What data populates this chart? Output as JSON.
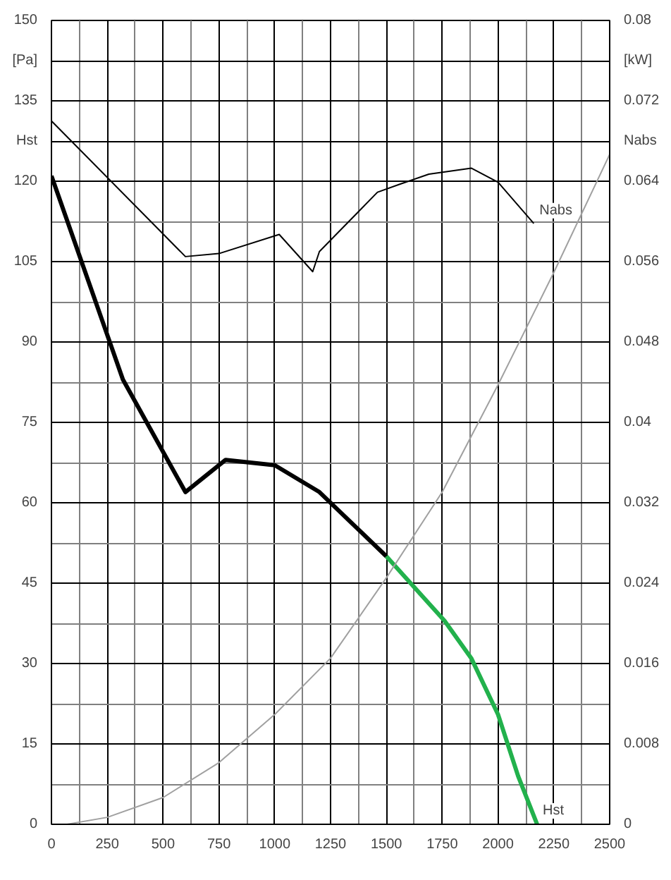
{
  "chart_data": {
    "type": "line",
    "xlim": [
      0,
      2500
    ],
    "xticks": [
      0,
      250,
      500,
      750,
      1000,
      1250,
      1500,
      1750,
      2000,
      2250,
      2500
    ],
    "ylim": [
      0,
      150
    ],
    "yticks": [
      0,
      15,
      30,
      45,
      60,
      75,
      90,
      105,
      120,
      {
        "value": 127.5,
        "label": "Hst"
      },
      135,
      {
        "value": 142.5,
        "label": "[Pa]"
      },
      150
    ],
    "y2lim": [
      0,
      0.08
    ],
    "y2ticks": [
      0,
      0.008,
      0.016,
      0.024,
      0.032,
      0.04,
      0.048,
      0.056,
      0.064,
      {
        "value": 0.068,
        "label": "Nabs"
      },
      0.072,
      {
        "value": 0.076,
        "label": "[kW]"
      },
      0.08
    ],
    "grid": true,
    "marker": "none",
    "line_style": "solid",
    "series": [
      {
        "color": "#000000",
        "x": [
          0,
          320,
          600,
          780,
          1000,
          1200,
          1500
        ],
        "values": [
          121,
          83,
          62,
          68,
          67,
          62,
          50
        ]
      },
      {
        "color": "#22b14c",
        "x": [
          1500,
          1760,
          1880,
          2000,
          2090,
          2175
        ],
        "values": [
          50,
          38,
          31,
          20.5,
          9,
          0
        ]
      },
      {
        "color": "#000000",
        "axis": "y2",
        "x": [
          0,
          600,
          750,
          1020,
          1170,
          1200,
          1460,
          1560,
          1690,
          1880,
          2000,
          2160
        ],
        "values": [
          0.07,
          0.0565,
          0.0568,
          0.0587,
          0.055,
          0.057,
          0.0629,
          0.0637,
          0.0647,
          0.0653,
          0.0639,
          0.0598
        ]
      },
      {
        "color": "#a0a0a0",
        "x": [
          70,
          250,
          500,
          750,
          1000,
          1250,
          1500,
          1750,
          2000,
          2250,
          2500
        ],
        "values": [
          0,
          1.3,
          5,
          11.5,
          20.5,
          31,
          46,
          62,
          82,
          103,
          125
        ]
      }
    ],
    "annotations": [
      {
        "text": "Hst",
        "x": 2175,
        "y": 0
      },
      {
        "text": "Nabs",
        "x": 2160,
        "y": 112
      }
    ]
  }
}
